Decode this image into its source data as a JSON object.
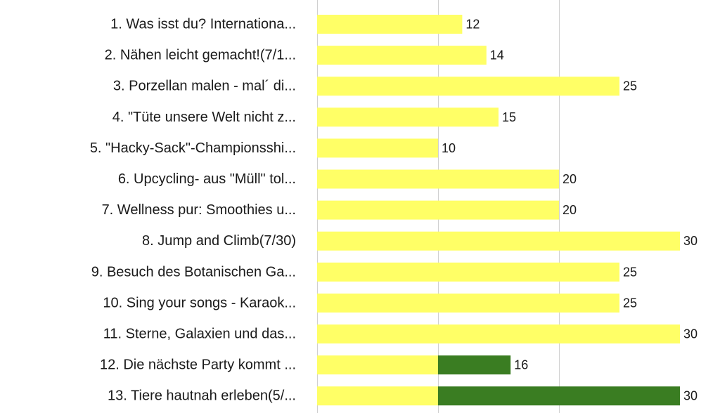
{
  "chart_data": {
    "type": "bar",
    "orientation": "horizontal",
    "stacked": true,
    "categories": [
      "1. Was isst du? Internationa...",
      "2. Nähen leicht gemacht!(7/1...",
      "3. Porzellan malen - mal´ di...",
      "4. \"Tüte unsere Welt nicht z...",
      "5. \"Hacky-Sack\"-Championsshi...",
      "6. Upcycling- aus \"Müll\" tol...",
      "7. Wellness pur: Smoothies u...",
      "8. Jump and Climb(7/30)",
      "9. Besuch des Botanischen Ga...",
      "10. Sing your songs - Karaok...",
      "11. Sterne, Galaxien und das...",
      "12. Die nächste Party kommt ...",
      "13. Tiere hautnah erleben(5/..."
    ],
    "series": [
      {
        "color": "#ffff66",
        "values": [
          12,
          14,
          25,
          15,
          10,
          20,
          20,
          30,
          25,
          25,
          30,
          10,
          10
        ]
      },
      {
        "color": "#3a7d22",
        "values": [
          0,
          0,
          0,
          0,
          0,
          0,
          0,
          0,
          0,
          0,
          0,
          6,
          20
        ]
      }
    ],
    "totals": [
      12,
      14,
      25,
      15,
      10,
      20,
      20,
      30,
      25,
      25,
      30,
      16,
      30
    ],
    "data_labels": [
      "12",
      "14",
      "25",
      "15",
      "10",
      "20",
      "20",
      "30",
      "25",
      "25",
      "30",
      "16",
      "30"
    ],
    "xlim": [
      0,
      30
    ],
    "grid": {
      "vertical_lines_at": [
        0,
        10,
        20
      ]
    },
    "gridline_color": "#d0d0d0",
    "legend": "none",
    "title": "",
    "xlabel": "",
    "ylabel": ""
  }
}
